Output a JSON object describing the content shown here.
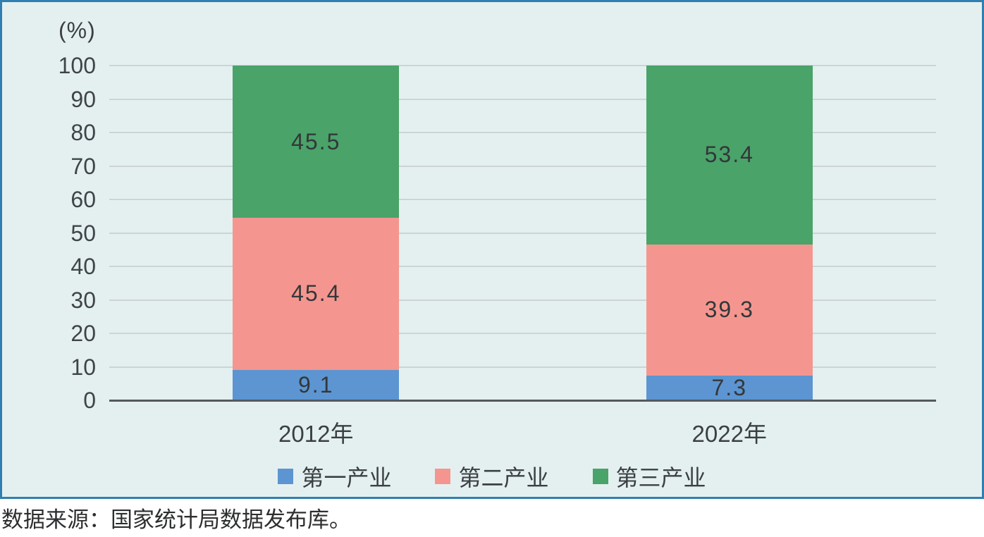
{
  "chart_data": {
    "type": "bar",
    "stacked": true,
    "unit_label": "(%)",
    "categories": [
      "2012年",
      "2022年"
    ],
    "series": [
      {
        "name": "第一产业",
        "color": "#5c95d1",
        "values": [
          9.1,
          7.3
        ]
      },
      {
        "name": "第二产业",
        "color": "#f4968f",
        "values": [
          45.4,
          39.3
        ]
      },
      {
        "name": "第三产业",
        "color": "#4aa369",
        "values": [
          45.5,
          53.4
        ]
      }
    ],
    "y_axis": {
      "min": 0,
      "max": 100,
      "step": 10,
      "ticks": [
        0,
        10,
        20,
        30,
        40,
        50,
        60,
        70,
        80,
        90,
        100
      ]
    },
    "grid": true,
    "legend_position": "bottom"
  },
  "source_note": "数据来源：国家统计局数据发布库。",
  "colors": {
    "panel_background": "#e4f0f0",
    "panel_border": "#2f80b0",
    "gridline": "#ccd4d6",
    "axis_line": "#55595d",
    "text": "#3b3f43",
    "series_blue": "#5c95d1",
    "series_pink": "#f4968f",
    "series_green": "#4aa369"
  }
}
